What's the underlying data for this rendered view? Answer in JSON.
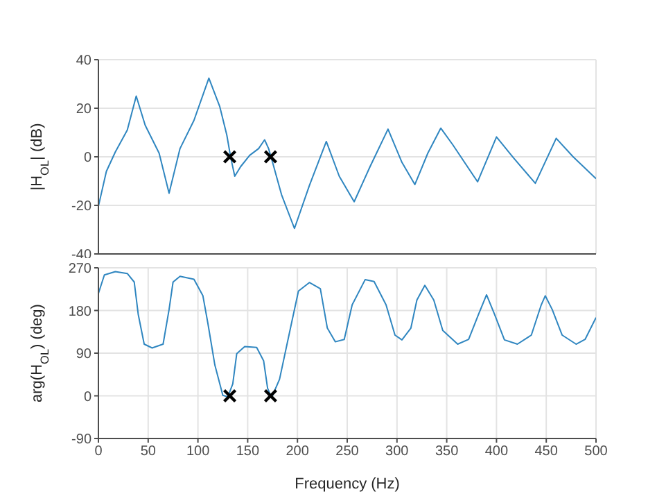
{
  "chart_data": [
    {
      "type": "line",
      "ylabel": "|H$_{OL}$| (dB)",
      "xlim": [
        0,
        500
      ],
      "xticks": [
        0,
        50,
        100,
        150,
        200,
        250,
        300,
        350,
        400,
        450,
        500
      ],
      "ylim": [
        -40,
        40
      ],
      "yticks": [
        -40,
        -20,
        0,
        20,
        40
      ],
      "tick_labels": "y",
      "grid": true,
      "series": [
        {
          "type": "line",
          "color": "#2f86c0",
          "x": [
            0,
            8,
            17,
            29,
            38,
            47,
            61,
            71,
            82,
            96,
            111,
            122,
            129,
            133,
            137,
            143,
            152,
            161,
            167,
            171,
            175,
            184,
            197,
            212,
            229,
            242,
            257,
            273,
            291,
            305,
            318,
            331,
            344,
            356,
            381,
            400,
            417,
            439,
            460,
            477,
            500
          ],
          "values": [
            -20.4,
            -6,
            2,
            11,
            25,
            13,
            1.5,
            -15,
            3.4,
            15,
            32.4,
            20.6,
            9,
            -0.4,
            -8,
            -4,
            0.6,
            3.4,
            7,
            3.4,
            -2.3,
            -15.6,
            -29.5,
            -11.8,
            6.3,
            -8,
            -18.5,
            -4,
            11.4,
            -2.3,
            -11.4,
            1.5,
            11.8,
            5,
            -10.3,
            8.2,
            -0.4,
            -10.9,
            7.6,
            0,
            -9
          ]
        },
        {
          "type": "scatter",
          "color": "#000000",
          "marker": "cross",
          "x": [
            132,
            173
          ],
          "values": [
            0,
            0
          ]
        }
      ]
    },
    {
      "type": "line",
      "xlabel": "Frequency (Hz)",
      "ylabel": "arg(H$_{OL}$) (deg)",
      "xlim": [
        0,
        500
      ],
      "xticks": [
        0,
        50,
        100,
        150,
        200,
        250,
        300,
        350,
        400,
        450,
        500
      ],
      "ylim": [
        -90,
        270
      ],
      "yticks": [
        -90,
        0,
        90,
        180,
        270
      ],
      "grid": true,
      "series": [
        {
          "type": "line",
          "color": "#2f86c0",
          "x": [
            0,
            6,
            17,
            29,
            36,
            40,
            46,
            54,
            65,
            71,
            75,
            82,
            96,
            105,
            110,
            117,
            125,
            130,
            135,
            139,
            147,
            159,
            166,
            170,
            174,
            182,
            194,
            201,
            212,
            223,
            230,
            238,
            247,
            255,
            268,
            277,
            289,
            298,
            305,
            314,
            320,
            328,
            337,
            346,
            361,
            372,
            382,
            390,
            398,
            408,
            421,
            435,
            445,
            449,
            456,
            466,
            480,
            489,
            500
          ],
          "values": [
            216,
            255,
            262,
            258,
            240,
            172,
            109,
            101,
            109,
            182,
            240,
            252,
            246,
            211,
            153,
            65,
            1,
            -2,
            25,
            89,
            104,
            102,
            74,
            16,
            -4,
            35,
            153,
            221,
            239,
            226,
            143,
            114,
            119,
            192,
            245,
            241,
            192,
            128,
            118,
            143,
            202,
            233,
            202,
            138,
            109,
            119,
            172,
            213,
            172,
            118,
            109,
            128,
            192,
            211,
            182,
            128,
            109,
            119,
            165
          ]
        },
        {
          "type": "scatter",
          "color": "#000000",
          "marker": "cross",
          "x": [
            132,
            173
          ],
          "values": [
            0,
            0
          ]
        }
      ]
    }
  ]
}
